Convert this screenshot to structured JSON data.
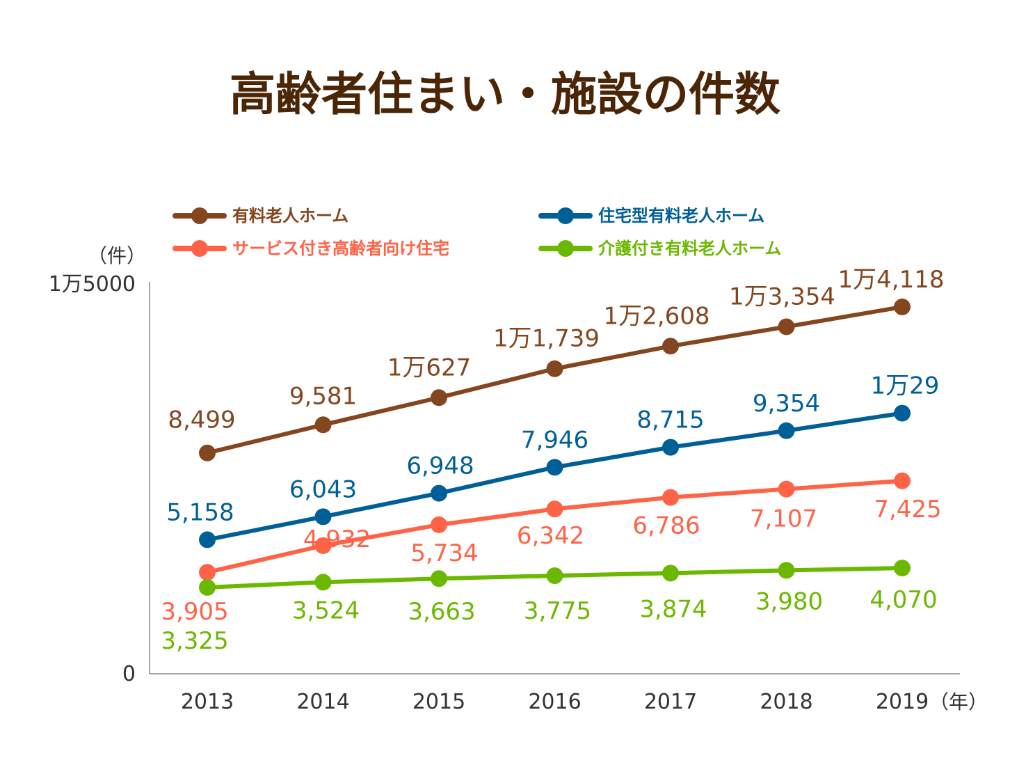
{
  "chart_data": {
    "type": "line",
    "title": "高齢者住まい・施設の件数",
    "xlabel": "",
    "ylabel": "",
    "y_unit_label": "（件）",
    "x_unit_label": "（年）",
    "x": [
      "2013",
      "2014",
      "2015",
      "2016",
      "2017",
      "2018",
      "2019"
    ],
    "ylim": [
      0,
      15000
    ],
    "yticks": [
      {
        "value": 0,
        "label": "0"
      },
      {
        "value": 15000,
        "label": "1万5000"
      }
    ],
    "grid": false,
    "legend_position": "top",
    "series": [
      {
        "name": "有料老人ホーム",
        "color": "#84461f",
        "values": [
          8499,
          9581,
          10627,
          11739,
          12608,
          13354,
          14118
        ],
        "labels": [
          "8,499",
          "9,581",
          "1万627",
          "1万1,739",
          "1万2,608",
          "1万3,354",
          "1万4,118"
        ],
        "label_side": "above"
      },
      {
        "name": "住宅型有料老人ホーム",
        "color": "#005f97",
        "values": [
          5158,
          6043,
          6948,
          7946,
          8715,
          9354,
          10029
        ],
        "labels": [
          "5,158",
          "6,043",
          "6,948",
          "7,946",
          "8,715",
          "9,354",
          "1万29"
        ],
        "label_side": "above"
      },
      {
        "name": "サービス付き高齢者向け住宅",
        "color": "#ff6347",
        "values": [
          3905,
          4932,
          5734,
          6342,
          6786,
          7107,
          7425
        ],
        "labels": [
          "3,905",
          "4,932",
          "5,734",
          "6,342",
          "6,786",
          "7,107",
          "7,425"
        ],
        "label_side": "below"
      },
      {
        "name": "介護付き有料老人ホーム",
        "color": "#6bb800",
        "values": [
          3325,
          3524,
          3663,
          3775,
          3874,
          3980,
          4070
        ],
        "labels": [
          "3,325",
          "3,524",
          "3,663",
          "3,775",
          "3,874",
          "3,980",
          "4,070"
        ],
        "label_side": "below"
      }
    ]
  }
}
